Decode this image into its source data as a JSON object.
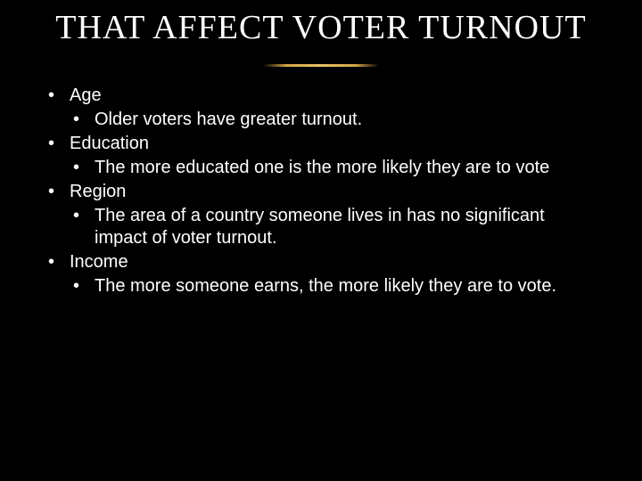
{
  "title": "THAT AFFECT VOTER TURNOUT",
  "colors": {
    "background": "#000000",
    "text": "#ffffff",
    "divider_mid": "#e8c46a",
    "divider_edge": "#d4a447"
  },
  "typography": {
    "title_font": "Times New Roman",
    "title_size_pt": 38,
    "body_font": "Arial",
    "body_size_pt": 20
  },
  "bullets": [
    {
      "label": "Age",
      "sub": [
        "Older voters have greater turnout."
      ]
    },
    {
      "label": "Education",
      "sub": [
        "The more educated one is the more likely they are to vote"
      ]
    },
    {
      "label": "Region",
      "sub": [
        "The area of a country someone lives in has no significant impact of voter turnout."
      ]
    },
    {
      "label": "Income",
      "sub": [
        "The more someone earns, the more likely they are to vote."
      ]
    }
  ]
}
